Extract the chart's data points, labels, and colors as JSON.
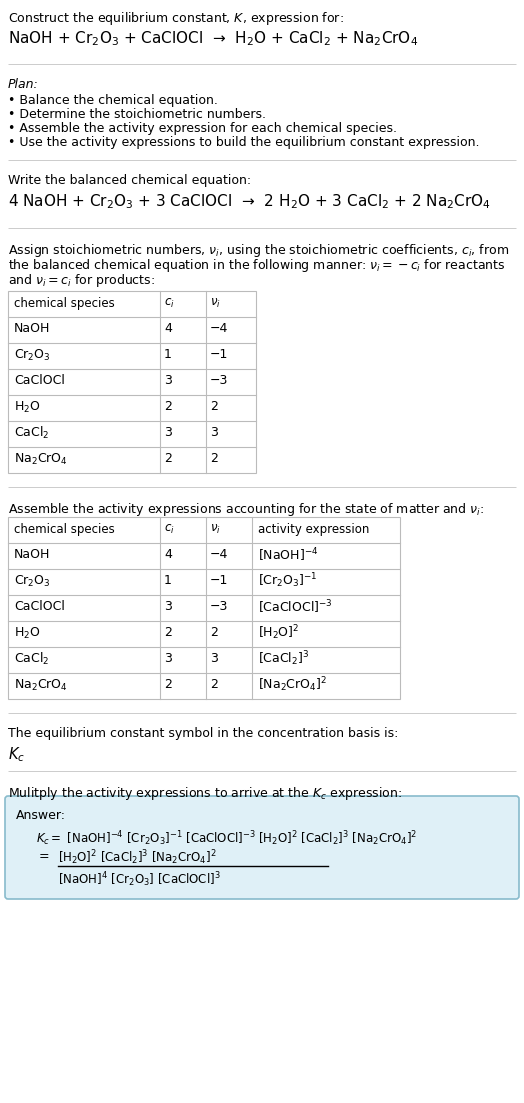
{
  "bg_color": "#ffffff",
  "text_color": "#000000",
  "table_border_color": "#bbbbbb",
  "answer_box_facecolor": "#dff0f7",
  "answer_box_edgecolor": "#88bbcc",
  "sections": {
    "title1": "Construct the equilibrium constant, $K$, expression for:",
    "title2": "NaOH + Cr$_2$O$_3$ + CaClOCl  →  H$_2$O + CaCl$_2$ + Na$_2$CrO$_4$",
    "plan_header": "Plan:",
    "plan_items": [
      "• Balance the chemical equation.",
      "• Determine the stoichiometric numbers.",
      "• Assemble the activity expression for each chemical species.",
      "• Use the activity expressions to build the equilibrium constant expression."
    ],
    "balanced_intro": "Write the balanced chemical equation:",
    "balanced_eq": "4 NaOH + Cr$_2$O$_3$ + 3 CaClOCl  →  2 H$_2$O + 3 CaCl$_2$ + 2 Na$_2$CrO$_4$",
    "stoich_intro": [
      "Assign stoichiometric numbers, $\\nu_i$, using the stoichiometric coefficients, $c_i$, from",
      "the balanced chemical equation in the following manner: $\\nu_i = -c_i$ for reactants",
      "and $\\nu_i = c_i$ for products:"
    ],
    "table1_headers": [
      "chemical species",
      "$c_i$",
      "$\\nu_i$"
    ],
    "table1_rows": [
      [
        "NaOH",
        "4",
        "−4"
      ],
      [
        "Cr$_2$O$_3$",
        "1",
        "−1"
      ],
      [
        "CaClOCl",
        "3",
        "−3"
      ],
      [
        "H$_2$O",
        "2",
        "2"
      ],
      [
        "CaCl$_2$",
        "3",
        "3"
      ],
      [
        "Na$_2$CrO$_4$",
        "2",
        "2"
      ]
    ],
    "activity_intro": "Assemble the activity expressions accounting for the state of matter and $\\nu_i$:",
    "table2_headers": [
      "chemical species",
      "$c_i$",
      "$\\nu_i$",
      "activity expression"
    ],
    "table2_rows": [
      [
        "NaOH",
        "4",
        "−4",
        "[NaOH]$^{-4}$"
      ],
      [
        "Cr$_2$O$_3$",
        "1",
        "−1",
        "[Cr$_2$O$_3$]$^{-1}$"
      ],
      [
        "CaClOCl",
        "3",
        "−3",
        "[CaClOCl]$^{-3}$"
      ],
      [
        "H$_2$O",
        "2",
        "2",
        "[H$_2$O]$^2$"
      ],
      [
        "CaCl$_2$",
        "3",
        "3",
        "[CaCl$_2$]$^3$"
      ],
      [
        "Na$_2$CrO$_4$",
        "2",
        "2",
        "[Na$_2$CrO$_4$]$^2$"
      ]
    ],
    "kc_intro": "The equilibrium constant symbol in the concentration basis is:",
    "kc_symbol": "$K_c$",
    "multiply_intro": "Mulitply the activity expressions to arrive at the $K_c$ expression:",
    "answer_label": "Answer:",
    "answer_line1": "$K_c = $ [NaOH]$^{-4}$ [Cr$_2$O$_3$]$^{-1}$ [CaClOCl]$^{-3}$ [H$_2$O]$^2$ [CaCl$_2$]$^3$ [Na$_2$CrO$_4$]$^2$",
    "answer_eq_sign": "=",
    "answer_numerator": "[H$_2$O]$^2$ [CaCl$_2$]$^3$ [Na$_2$CrO$_4$]$^2$",
    "answer_denominator": "[NaOH]$^4$ [Cr$_2$O$_3$] [CaClOCl]$^3$"
  }
}
